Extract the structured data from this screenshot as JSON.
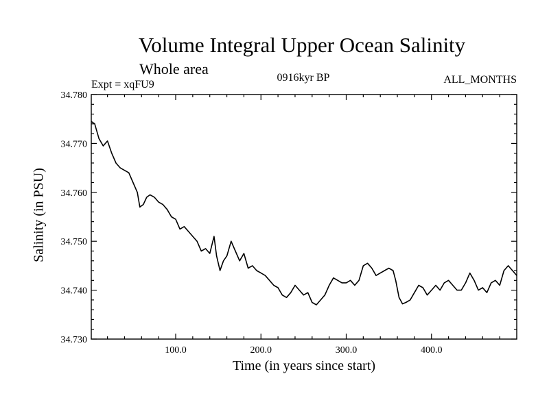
{
  "chart_data": {
    "type": "line",
    "title": "Volume Integral Upper Ocean Salinity",
    "subtitle": "Whole area",
    "experiment": "Expt = xqFU9",
    "period": "0916kyr BP",
    "months": "ALL_MONTHS",
    "xlabel": "Time (in years since start)",
    "ylabel": "Salinity (in PSU)",
    "xlim": [
      1,
      500
    ],
    "ylim": [
      34.73,
      34.78
    ],
    "x_ticks": [
      100,
      200,
      300,
      400
    ],
    "x_tick_labels": [
      "100.0",
      "200.0",
      "300.0",
      "400.0"
    ],
    "y_ticks": [
      34.73,
      34.74,
      34.75,
      34.76,
      34.77,
      34.78
    ],
    "y_tick_labels": [
      "34.730",
      "34.740",
      "34.750",
      "34.760",
      "34.770",
      "34.780"
    ],
    "grid": false,
    "series": [
      {
        "name": "Salinity",
        "x": [
          1,
          5,
          10,
          15,
          20,
          25,
          30,
          35,
          40,
          45,
          50,
          55,
          58,
          62,
          66,
          70,
          75,
          80,
          85,
          90,
          95,
          100,
          105,
          110,
          115,
          120,
          125,
          130,
          135,
          140,
          145,
          148,
          152,
          156,
          160,
          165,
          170,
          175,
          180,
          185,
          190,
          195,
          200,
          205,
          210,
          215,
          220,
          225,
          230,
          235,
          240,
          245,
          250,
          255,
          260,
          265,
          270,
          275,
          280,
          285,
          290,
          295,
          300,
          305,
          310,
          315,
          320,
          325,
          330,
          335,
          340,
          345,
          350,
          355,
          358,
          362,
          366,
          370,
          375,
          380,
          385,
          390,
          395,
          400,
          405,
          410,
          415,
          420,
          425,
          430,
          435,
          440,
          445,
          450,
          455,
          460,
          465,
          470,
          475,
          480,
          485,
          490,
          495,
          500
        ],
        "values": [
          34.7745,
          34.774,
          34.771,
          34.7695,
          34.7705,
          34.768,
          34.766,
          34.765,
          34.7645,
          34.764,
          34.762,
          34.76,
          34.757,
          34.7575,
          34.759,
          34.7595,
          34.759,
          34.758,
          34.7575,
          34.7565,
          34.755,
          34.7545,
          34.7525,
          34.753,
          34.752,
          34.751,
          34.75,
          34.748,
          34.7485,
          34.7475,
          34.751,
          34.747,
          34.744,
          34.746,
          34.747,
          34.75,
          34.748,
          34.746,
          34.7475,
          34.7445,
          34.745,
          34.744,
          34.7435,
          34.743,
          34.742,
          34.741,
          34.7405,
          34.739,
          34.7385,
          34.7395,
          34.741,
          34.74,
          34.739,
          34.7395,
          34.7375,
          34.737,
          34.738,
          34.739,
          34.741,
          34.7425,
          34.742,
          34.7415,
          34.7415,
          34.742,
          34.741,
          34.742,
          34.745,
          34.7455,
          34.7445,
          34.743,
          34.7435,
          34.744,
          34.7445,
          34.744,
          34.742,
          34.7385,
          34.7372,
          34.7375,
          34.738,
          34.7395,
          34.741,
          34.7405,
          34.739,
          34.74,
          34.741,
          34.74,
          34.7415,
          34.742,
          34.741,
          34.74,
          34.74,
          34.7415,
          34.7435,
          34.742,
          34.74,
          34.7405,
          34.7395,
          34.7415,
          34.742,
          34.741,
          34.744,
          34.745,
          34.744,
          34.743
        ]
      }
    ]
  }
}
